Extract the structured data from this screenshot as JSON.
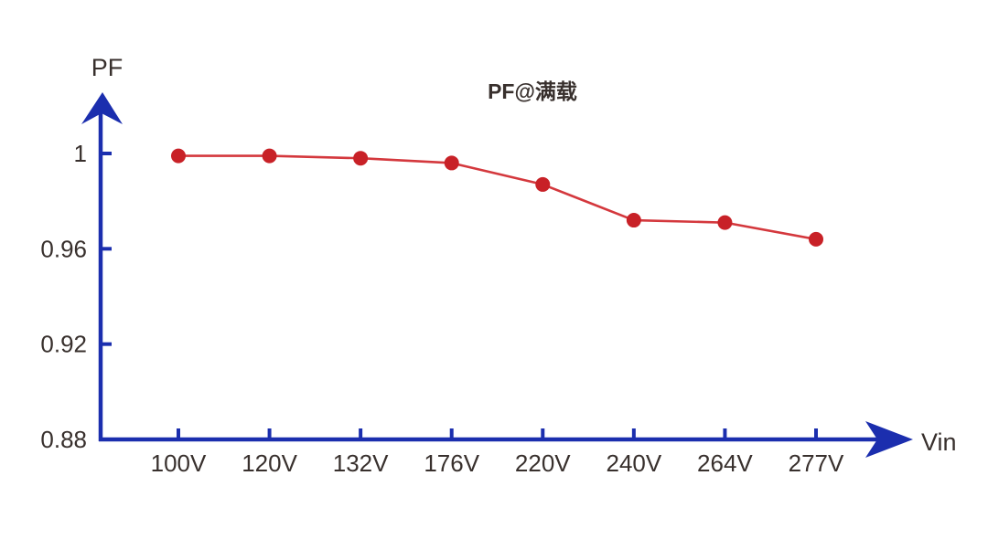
{
  "title": "PF@满载",
  "axes": {
    "y_label": "PF",
    "x_label": "Vin"
  },
  "colors": {
    "axis_blue": "#1b2eae",
    "marker_red": "#c82127",
    "line_red": "#d4383d",
    "text_dark": "#38302d",
    "background": "#ffffff"
  },
  "chart_data": {
    "type": "line",
    "title": "PF@满载",
    "xlabel": "Vin",
    "ylabel": "PF",
    "categories": [
      "100V",
      "120V",
      "132V",
      "176V",
      "220V",
      "240V",
      "264V",
      "277V"
    ],
    "series": [
      {
        "name": "PF",
        "values": [
          0.999,
          0.999,
          0.998,
          0.996,
          0.987,
          0.972,
          0.971,
          0.964
        ]
      }
    ],
    "yticks": [
      0.88,
      0.92,
      0.96,
      1
    ],
    "ytick_labels": [
      "0.88",
      "0.92",
      "0.96",
      "1"
    ],
    "ylim": [
      0.88,
      1.012
    ],
    "grid": false,
    "legend": "none",
    "marker": "circle"
  }
}
